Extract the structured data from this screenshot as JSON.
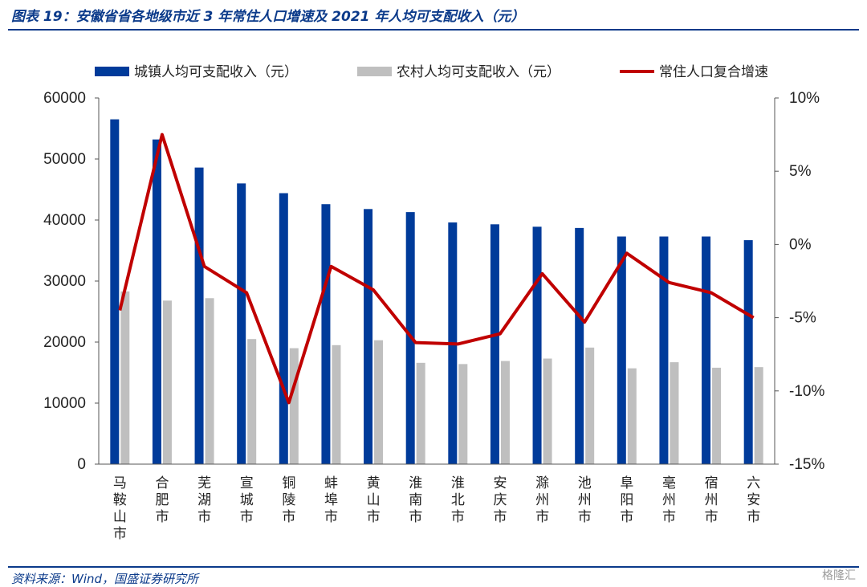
{
  "header": {
    "title": "图表 19：安徽省省各地级市近 3 年常住人口增速及 2021 年人均可支配收入（元）"
  },
  "footer": {
    "source": "资料来源：Wind，国盛证券研究所",
    "watermark": "格隆汇"
  },
  "chart_data": {
    "type": "bar",
    "categories": [
      "马鞍山市",
      "合肥市",
      "芜湖市",
      "宣城市",
      "铜陵市",
      "蚌埠市",
      "黄山市",
      "淮南市",
      "淮北市",
      "安庆市",
      "滁州市",
      "池州市",
      "阜阳市",
      "亳州市",
      "宿州市",
      "六安市"
    ],
    "series": [
      {
        "name": "城镇人均可支配收入（元）",
        "type": "bar",
        "axis": "left",
        "color": "#003b9a",
        "values": [
          56500,
          53200,
          48600,
          46000,
          44400,
          42600,
          41800,
          41300,
          39600,
          39300,
          38900,
          38700,
          37300,
          37300,
          37300,
          36700
        ]
      },
      {
        "name": "农村人均可支配收入（元）",
        "type": "bar",
        "axis": "left",
        "color": "#bfbfbf",
        "values": [
          28300,
          26800,
          27200,
          20500,
          19000,
          19500,
          20300,
          16600,
          16400,
          16900,
          17300,
          19100,
          15700,
          16700,
          15800,
          15900
        ]
      },
      {
        "name": "常住人口复合增速",
        "type": "line",
        "axis": "right",
        "color": "#c00000",
        "values": [
          -4.5,
          7.5,
          -1.5,
          -3.3,
          -10.8,
          -1.5,
          -3.1,
          -6.7,
          -6.8,
          -6.1,
          -2.0,
          -5.3,
          -0.6,
          -2.6,
          -3.3,
          -5.0
        ]
      }
    ],
    "y_left": {
      "ylim": [
        0,
        60000
      ],
      "ticks": [
        0,
        10000,
        20000,
        30000,
        40000,
        50000,
        60000
      ],
      "tick_labels": [
        "0",
        "10000",
        "20000",
        "30000",
        "40000",
        "50000",
        "60000"
      ]
    },
    "y_right": {
      "ylim": [
        -15,
        10
      ],
      "ticks": [
        -15,
        -10,
        -5,
        0,
        5,
        10
      ],
      "tick_labels": [
        "-15%",
        "-10%",
        "-5%",
        "0%",
        "5%",
        "10%"
      ]
    },
    "legend_position": "top",
    "grid": false
  }
}
